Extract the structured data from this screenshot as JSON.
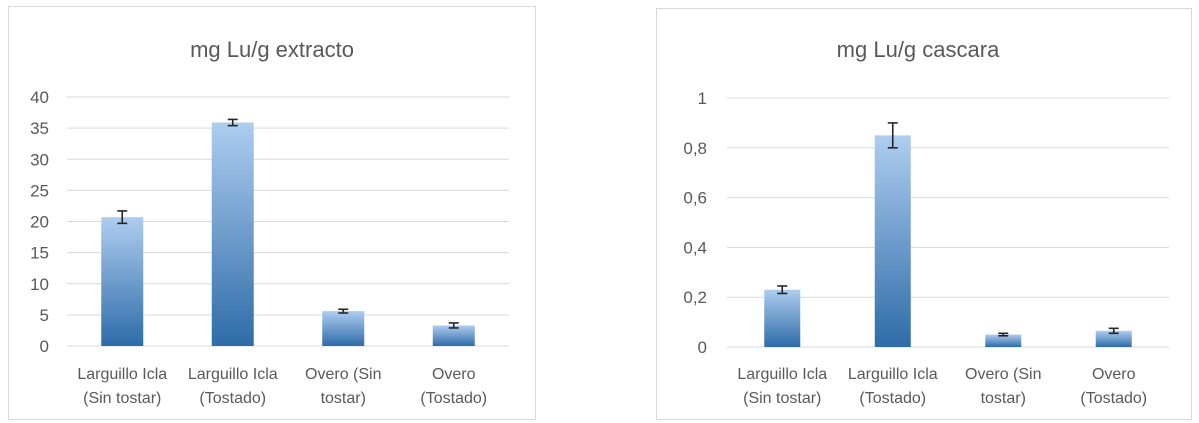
{
  "colors": {
    "bar_top": "#aecdf0",
    "bar_bottom": "#2e6ca8",
    "grid": "#d9d9d9",
    "text": "#595959"
  },
  "chart_data": [
    {
      "type": "bar",
      "title": "mg Lu/g extracto",
      "categories": [
        [
          "Larguillo Icla",
          "(Sin tostar)"
        ],
        [
          "Larguillo Icla",
          "(Tostado)"
        ],
        [
          "Overo (Sin",
          "tostar)"
        ],
        [
          "Overo",
          "(Tostado)"
        ]
      ],
      "values": [
        20.7,
        35.9,
        5.6,
        3.3
      ],
      "errors": [
        1.0,
        0.5,
        0.3,
        0.4
      ],
      "ylim": [
        0,
        40
      ],
      "ticks": [
        "0",
        "5",
        "10",
        "15",
        "20",
        "25",
        "30",
        "35",
        "40"
      ],
      "tick_values": [
        0,
        5,
        10,
        15,
        20,
        25,
        30,
        35,
        40
      ],
      "grid": true
    },
    {
      "type": "bar",
      "title": "mg Lu/g cascara",
      "categories": [
        [
          "Larguillo Icla",
          "(Sin tostar)"
        ],
        [
          "Larguillo Icla",
          "(Tostado)"
        ],
        [
          "Overo (Sin",
          "tostar)"
        ],
        [
          "Overo",
          "(Tostado)"
        ]
      ],
      "values": [
        0.23,
        0.85,
        0.05,
        0.065
      ],
      "errors": [
        0.015,
        0.05,
        0.005,
        0.01
      ],
      "ylim": [
        0,
        1
      ],
      "ticks": [
        "0",
        "0,2",
        "0,4",
        "0,6",
        "0,8",
        "1"
      ],
      "tick_values": [
        0,
        0.2,
        0.4,
        0.6,
        0.8,
        1
      ],
      "grid": true
    }
  ]
}
